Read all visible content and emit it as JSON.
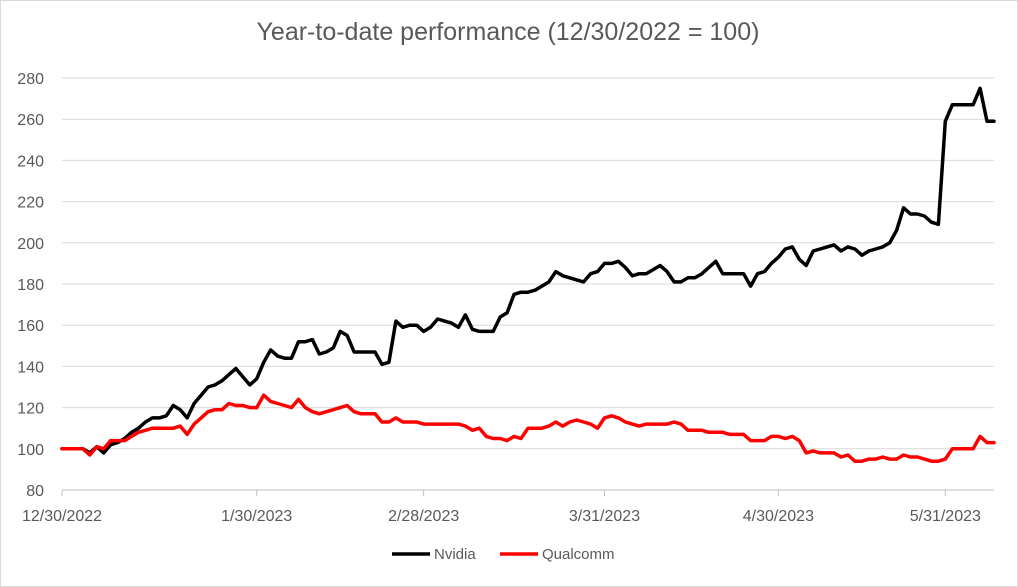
{
  "chart_data": {
    "type": "line",
    "title": "Year-to-date performance  (12/30/2022 = 100)",
    "xlabel": "",
    "ylabel": "",
    "ylim": [
      80,
      280
    ],
    "yticks": [
      80,
      100,
      120,
      140,
      160,
      180,
      200,
      220,
      240,
      260,
      280
    ],
    "xtick_labels": [
      "12/30/2022",
      "1/30/2023",
      "2/28/2023",
      "3/31/2023",
      "4/30/2023",
      "5/31/2023"
    ],
    "grid": "horizontal",
    "legend_position": "bottom",
    "series": [
      {
        "name": "Nvidia",
        "color": "#000000",
        "points": [
          [
            0,
            100
          ],
          [
            2,
            100
          ],
          [
            3,
            100
          ],
          [
            4,
            98
          ],
          [
            5,
            101
          ],
          [
            6,
            98
          ],
          [
            7,
            102
          ],
          [
            8,
            103
          ],
          [
            9,
            105
          ],
          [
            10,
            108
          ],
          [
            11,
            110
          ],
          [
            12,
            113
          ],
          [
            13,
            115
          ],
          [
            14,
            115
          ],
          [
            15,
            116
          ],
          [
            16,
            121
          ],
          [
            17,
            119
          ],
          [
            18,
            115
          ],
          [
            19,
            122
          ],
          [
            20,
            126
          ],
          [
            21,
            130
          ],
          [
            22,
            131
          ],
          [
            23,
            133
          ],
          [
            24,
            136
          ],
          [
            25,
            139
          ],
          [
            26,
            135
          ],
          [
            27,
            131
          ],
          [
            28,
            134
          ],
          [
            29,
            142
          ],
          [
            30,
            148
          ],
          [
            31,
            145
          ],
          [
            32,
            144
          ],
          [
            33,
            144
          ],
          [
            34,
            152
          ],
          [
            35,
            152
          ],
          [
            36,
            153
          ],
          [
            37,
            146
          ],
          [
            38,
            147
          ],
          [
            39,
            149
          ],
          [
            40,
            157
          ],
          [
            41,
            155
          ],
          [
            42,
            147
          ],
          [
            43,
            147
          ],
          [
            44,
            147
          ],
          [
            45,
            147
          ],
          [
            46,
            141
          ],
          [
            47,
            142
          ],
          [
            48,
            162
          ],
          [
            49,
            159
          ],
          [
            50,
            160
          ],
          [
            51,
            160
          ],
          [
            52,
            157
          ],
          [
            53,
            159
          ],
          [
            54,
            163
          ],
          [
            55,
            162
          ],
          [
            56,
            161
          ],
          [
            57,
            159
          ],
          [
            58,
            165
          ],
          [
            59,
            158
          ],
          [
            60,
            157
          ],
          [
            61,
            157
          ],
          [
            62,
            157
          ],
          [
            63,
            164
          ],
          [
            64,
            166
          ],
          [
            65,
            175
          ],
          [
            66,
            176
          ],
          [
            67,
            176
          ],
          [
            68,
            177
          ],
          [
            69,
            179
          ],
          [
            70,
            181
          ],
          [
            71,
            186
          ],
          [
            72,
            184
          ],
          [
            73,
            183
          ],
          [
            74,
            182
          ],
          [
            75,
            181
          ],
          [
            76,
            185
          ],
          [
            77,
            186
          ],
          [
            78,
            190
          ],
          [
            79,
            190
          ],
          [
            80,
            191
          ],
          [
            81,
            188
          ],
          [
            82,
            184
          ],
          [
            83,
            185
          ],
          [
            84,
            185
          ],
          [
            85,
            187
          ],
          [
            86,
            189
          ],
          [
            87,
            186
          ],
          [
            88,
            181
          ],
          [
            89,
            181
          ],
          [
            90,
            183
          ],
          [
            91,
            183
          ],
          [
            92,
            185
          ],
          [
            93,
            188
          ],
          [
            94,
            191
          ],
          [
            95,
            185
          ],
          [
            96,
            185
          ],
          [
            97,
            185
          ],
          [
            98,
            185
          ],
          [
            99,
            179
          ],
          [
            100,
            185
          ],
          [
            101,
            186
          ],
          [
            102,
            190
          ],
          [
            103,
            193
          ],
          [
            104,
            197
          ],
          [
            105,
            198
          ],
          [
            106,
            192
          ],
          [
            107,
            189
          ],
          [
            108,
            196
          ],
          [
            109,
            197
          ],
          [
            110,
            198
          ],
          [
            111,
            199
          ],
          [
            112,
            196
          ],
          [
            113,
            198
          ],
          [
            114,
            197
          ],
          [
            115,
            194
          ],
          [
            116,
            196
          ],
          [
            117,
            197
          ],
          [
            118,
            198
          ],
          [
            119,
            200
          ],
          [
            120,
            206
          ],
          [
            121,
            217
          ],
          [
            122,
            214
          ],
          [
            123,
            214
          ],
          [
            124,
            213
          ],
          [
            125,
            210
          ],
          [
            126,
            209
          ],
          [
            127,
            259
          ],
          [
            128,
            267
          ],
          [
            129,
            267
          ],
          [
            130,
            267
          ],
          [
            131,
            267
          ],
          [
            132,
            275
          ],
          [
            133,
            259
          ],
          [
            134,
            259
          ]
        ]
      },
      {
        "name": "Qualcomm",
        "color": "#ff0000",
        "points": [
          [
            0,
            100
          ],
          [
            2,
            100
          ],
          [
            3,
            100
          ],
          [
            4,
            97
          ],
          [
            5,
            101
          ],
          [
            6,
            100
          ],
          [
            7,
            104
          ],
          [
            8,
            104
          ],
          [
            9,
            104
          ],
          [
            10,
            106
          ],
          [
            11,
            108
          ],
          [
            12,
            109
          ],
          [
            13,
            110
          ],
          [
            14,
            110
          ],
          [
            15,
            110
          ],
          [
            16,
            110
          ],
          [
            17,
            111
          ],
          [
            18,
            107
          ],
          [
            19,
            112
          ],
          [
            20,
            115
          ],
          [
            21,
            118
          ],
          [
            22,
            119
          ],
          [
            23,
            119
          ],
          [
            24,
            122
          ],
          [
            25,
            121
          ],
          [
            26,
            121
          ],
          [
            27,
            120
          ],
          [
            28,
            120
          ],
          [
            29,
            126
          ],
          [
            30,
            123
          ],
          [
            31,
            122
          ],
          [
            32,
            121
          ],
          [
            33,
            120
          ],
          [
            34,
            124
          ],
          [
            35,
            120
          ],
          [
            36,
            118
          ],
          [
            37,
            117
          ],
          [
            38,
            118
          ],
          [
            39,
            119
          ],
          [
            40,
            120
          ],
          [
            41,
            121
          ],
          [
            42,
            118
          ],
          [
            43,
            117
          ],
          [
            44,
            117
          ],
          [
            45,
            117
          ],
          [
            46,
            113
          ],
          [
            47,
            113
          ],
          [
            48,
            115
          ],
          [
            49,
            113
          ],
          [
            50,
            113
          ],
          [
            51,
            113
          ],
          [
            52,
            112
          ],
          [
            53,
            112
          ],
          [
            54,
            112
          ],
          [
            55,
            112
          ],
          [
            56,
            112
          ],
          [
            57,
            112
          ],
          [
            58,
            111
          ],
          [
            59,
            109
          ],
          [
            60,
            110
          ],
          [
            61,
            106
          ],
          [
            62,
            105
          ],
          [
            63,
            105
          ],
          [
            64,
            104
          ],
          [
            65,
            106
          ],
          [
            66,
            105
          ],
          [
            67,
            110
          ],
          [
            68,
            110
          ],
          [
            69,
            110
          ],
          [
            70,
            111
          ],
          [
            71,
            113
          ],
          [
            72,
            111
          ],
          [
            73,
            113
          ],
          [
            74,
            114
          ],
          [
            75,
            113
          ],
          [
            76,
            112
          ],
          [
            77,
            110
          ],
          [
            78,
            115
          ],
          [
            79,
            116
          ],
          [
            80,
            115
          ],
          [
            81,
            113
          ],
          [
            82,
            112
          ],
          [
            83,
            111
          ],
          [
            84,
            112
          ],
          [
            85,
            112
          ],
          [
            86,
            112
          ],
          [
            87,
            112
          ],
          [
            88,
            113
          ],
          [
            89,
            112
          ],
          [
            90,
            109
          ],
          [
            91,
            109
          ],
          [
            92,
            109
          ],
          [
            93,
            108
          ],
          [
            94,
            108
          ],
          [
            95,
            108
          ],
          [
            96,
            107
          ],
          [
            97,
            107
          ],
          [
            98,
            107
          ],
          [
            99,
            104
          ],
          [
            100,
            104
          ],
          [
            101,
            104
          ],
          [
            102,
            106
          ],
          [
            103,
            106
          ],
          [
            104,
            105
          ],
          [
            105,
            106
          ],
          [
            106,
            104
          ],
          [
            107,
            98
          ],
          [
            108,
            99
          ],
          [
            109,
            98
          ],
          [
            110,
            98
          ],
          [
            111,
            98
          ],
          [
            112,
            96
          ],
          [
            113,
            97
          ],
          [
            114,
            94
          ],
          [
            115,
            94
          ],
          [
            116,
            95
          ],
          [
            117,
            95
          ],
          [
            118,
            96
          ],
          [
            119,
            95
          ],
          [
            120,
            95
          ],
          [
            121,
            97
          ],
          [
            122,
            96
          ],
          [
            123,
            96
          ],
          [
            124,
            95
          ],
          [
            125,
            94
          ],
          [
            126,
            94
          ],
          [
            127,
            95
          ],
          [
            128,
            100
          ],
          [
            129,
            100
          ],
          [
            130,
            100
          ],
          [
            131,
            100
          ],
          [
            132,
            106
          ],
          [
            133,
            103
          ],
          [
            134,
            103
          ]
        ]
      }
    ]
  }
}
